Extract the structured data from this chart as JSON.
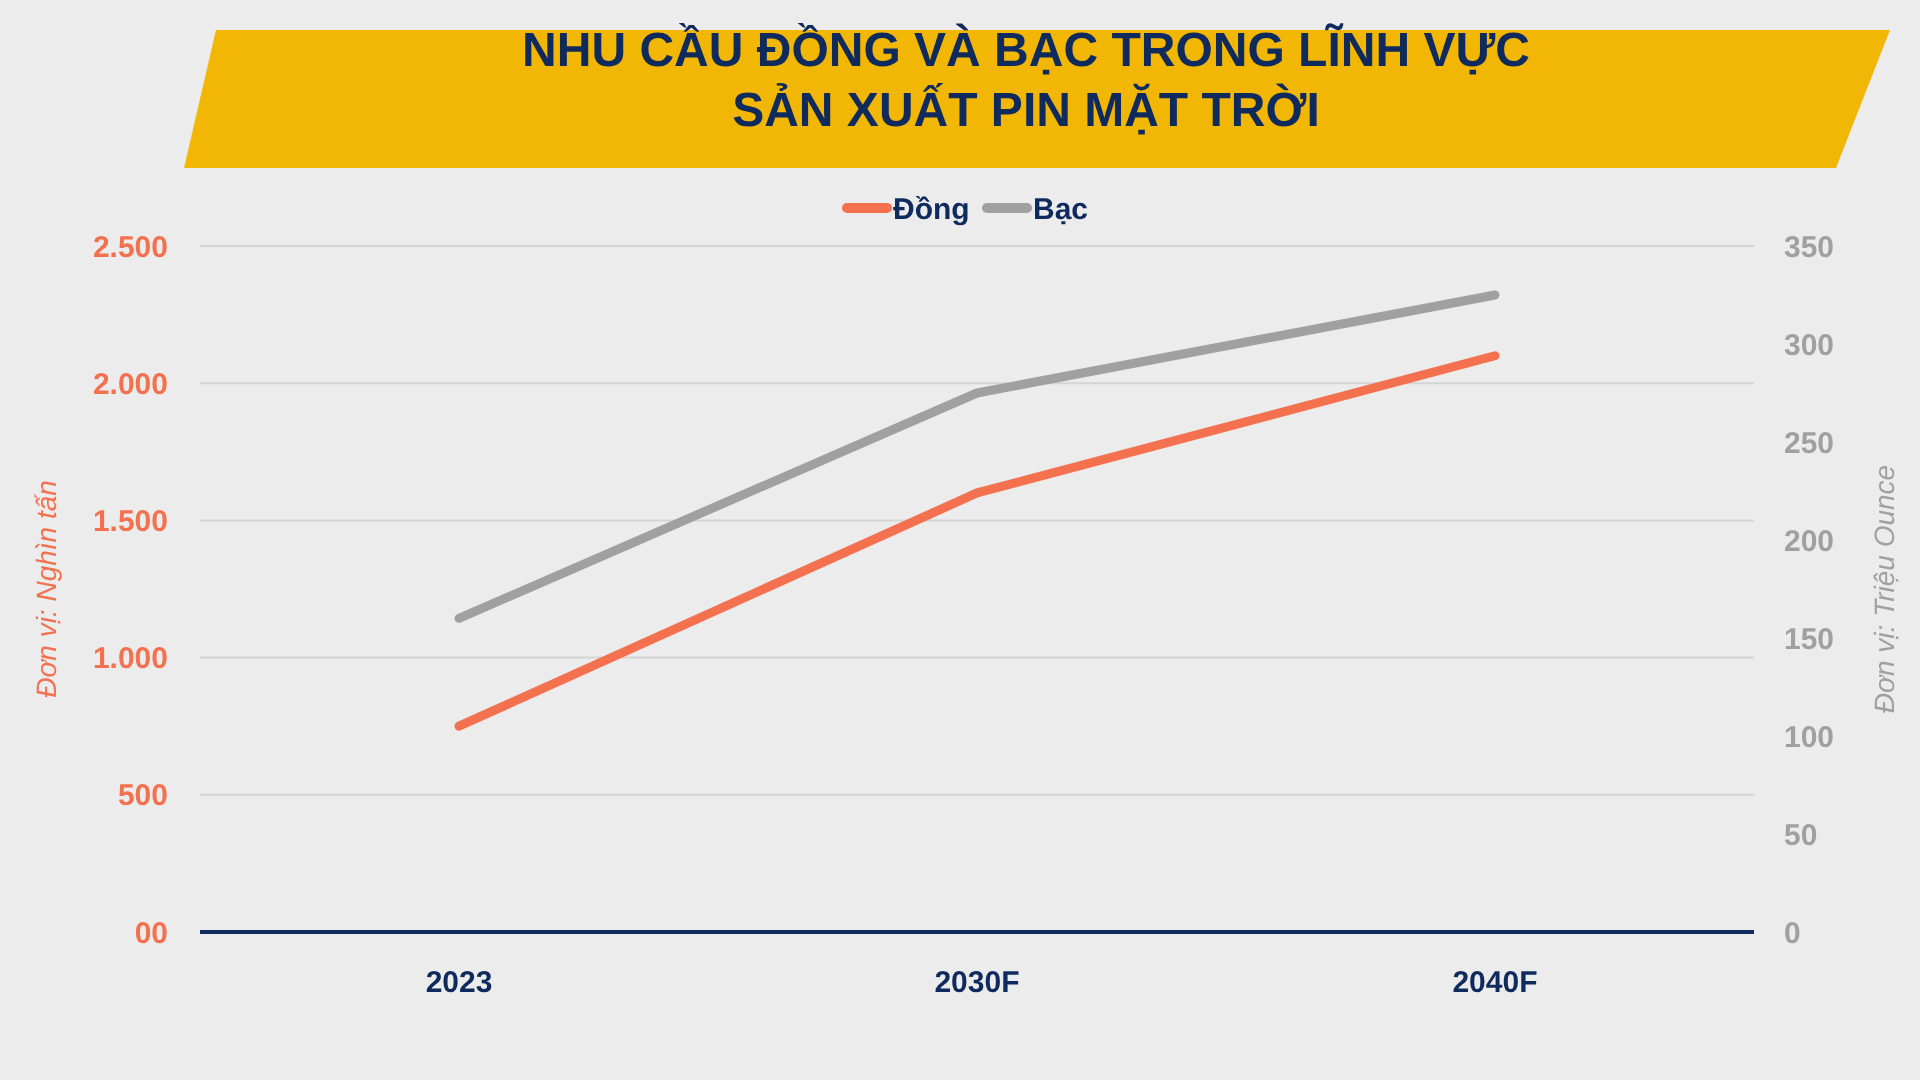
{
  "chart_data": {
    "type": "line",
    "title": "NHU CẦU ĐỒNG VÀ BẠC TRONG LĨNH VỰC\nSẢN XUẤT PIN MẶT TRỜI",
    "ylabel": "Đơn vị: Nghìn tấn",
    "y2label": "Đơn vị: Triệu Ounce",
    "categories": [
      "2023",
      "2030F",
      "2040F"
    ],
    "series": [
      {
        "name": "Đồng",
        "color": "#f4714f",
        "values": [
          750,
          1600,
          2100
        ]
      },
      {
        "name": "Bạc",
        "color": "#a0a0a0",
        "values": [
          160,
          275,
          325
        ],
        "axis": "y2"
      }
    ],
    "ylim": [
      0,
      2500
    ],
    "yticks": [
      {
        "value": 0,
        "label": "00"
      },
      500,
      {
        "value": 1000,
        "label": "1.000"
      },
      {
        "value": 1500,
        "label": "1.500"
      },
      {
        "value": 2000,
        "label": "2.000"
      },
      {
        "value": 2500,
        "label": "2.500"
      }
    ],
    "y2lim": [
      0,
      350
    ],
    "y2ticks": [
      0,
      50,
      100,
      150,
      200,
      250,
      300,
      350
    ],
    "grid": "y",
    "legend": "top"
  }
}
